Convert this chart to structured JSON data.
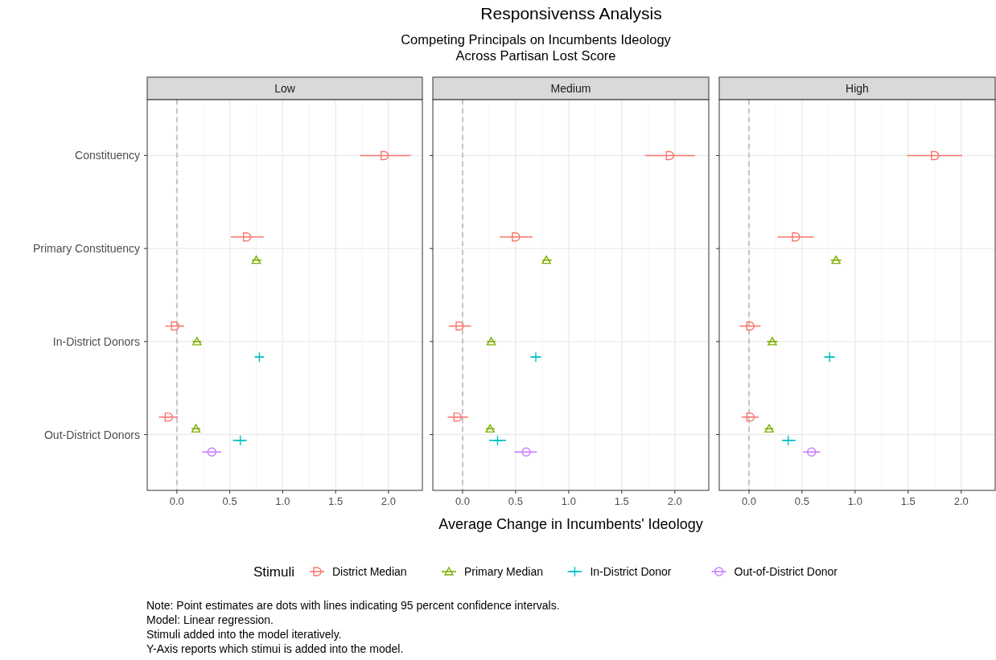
{
  "chart_data": [
    {
      "type": "scatter",
      "orientation": "horizontal",
      "title": "Low",
      "categories": [
        "Constituency",
        "Primary Constituency",
        "In-District Donors",
        "Out-District Donors"
      ],
      "series": [
        {
          "color": "#f8766d",
          "marker": "square",
          "values": [
            1.96,
            0.66,
            -0.02,
            -0.08
          ],
          "errors": [
            [
              1.73,
              2.21
            ],
            [
              0.51,
              0.82
            ],
            [
              -0.11,
              0.07
            ],
            [
              -0.17,
              0.01
            ]
          ]
        },
        {
          "color": "#7cae00",
          "marker": "triangle",
          "values": [
            null,
            0.75,
            0.19,
            0.18
          ],
          "errors": [
            null,
            [
              0.71,
              0.8
            ],
            [
              0.15,
              0.23
            ],
            [
              0.14,
              0.22
            ]
          ]
        },
        {
          "color": "#00bfc4",
          "marker": "cross",
          "values": [
            null,
            null,
            0.78,
            0.6
          ],
          "errors": [
            null,
            null,
            [
              0.74,
              0.82
            ],
            [
              0.53,
              0.66
            ]
          ]
        },
        {
          "color": "#c77cff",
          "marker": "circle",
          "values": [
            null,
            null,
            null,
            0.33
          ],
          "errors": [
            null,
            null,
            null,
            [
              0.24,
              0.42
            ]
          ]
        }
      ],
      "xlim": [
        -0.28,
        2.32
      ],
      "xticks": [
        {
          "value": 0,
          "label": "0.0"
        },
        {
          "value": 0.5,
          "label": "0.5"
        },
        {
          "value": 1,
          "label": "1.0"
        },
        {
          "value": 1.5,
          "label": "1.5"
        },
        {
          "value": 2,
          "label": "2.0"
        }
      ],
      "ref_lines": [
        {
          "axis": "x",
          "value": 0,
          "label": null,
          "color": "#bebebe",
          "line_style": "dashed"
        }
      ],
      "grid": true,
      "annotations": [
        "Responsivenss Analysis",
        "Competing Principals on Incumbents Ideology\nAcross Partisan Lost Score",
        "Note: Point estimates are dots with lines indicating 95 percent confidence intervals.\nModel: Linear regression.\nStimuli added into the model iteratively.\nY-Axis reports which stimui is added into the model."
      ]
    },
    {
      "type": "scatter",
      "orientation": "horizontal",
      "title": "Medium",
      "categories": [
        null,
        null,
        null,
        null
      ],
      "tick_labels": "x",
      "series": [
        {
          "name": "District Median",
          "color": "#f8766d",
          "marker": "square",
          "values": [
            1.95,
            0.5,
            -0.03,
            -0.05
          ],
          "errors": [
            [
              1.72,
              2.19
            ],
            [
              0.35,
              0.66
            ],
            [
              -0.13,
              0.08
            ],
            [
              -0.14,
              0.05
            ]
          ]
        },
        {
          "name": "Primary Median",
          "color": "#7cae00",
          "marker": "triangle",
          "values": [
            null,
            0.79,
            0.27,
            0.26
          ],
          "errors": [
            null,
            [
              0.75,
              0.84
            ],
            [
              0.23,
              0.31
            ],
            [
              0.22,
              0.3
            ]
          ]
        },
        {
          "name": "In-District Donor",
          "color": "#00bfc4",
          "marker": "cross",
          "values": [
            null,
            null,
            0.69,
            0.33
          ],
          "errors": [
            null,
            null,
            [
              0.64,
              0.74
            ],
            [
              0.25,
              0.41
            ]
          ]
        },
        {
          "name": "Out-of-District Donor",
          "color": "#c77cff",
          "marker": "circle",
          "values": [
            null,
            null,
            null,
            0.6
          ],
          "errors": [
            null,
            null,
            null,
            [
              0.49,
              0.7
            ]
          ]
        }
      ],
      "xlim": [
        -0.28,
        2.32
      ],
      "xticks": [
        {
          "value": 0,
          "label": "0.0"
        },
        {
          "value": 0.5,
          "label": "0.5"
        },
        {
          "value": 1,
          "label": "1.0"
        },
        {
          "value": 1.5,
          "label": "1.5"
        },
        {
          "value": 2,
          "label": "2.0"
        }
      ],
      "ref_lines": [
        {
          "axis": "x",
          "value": 0,
          "label": null,
          "color": "#bebebe",
          "line_style": "dashed"
        }
      ],
      "grid": true,
      "xlabel": "Average Change in Incumbents' Ideology",
      "legend": "bottom",
      "legend_title": "Stimuli"
    },
    {
      "type": "scatter",
      "orientation": "horizontal",
      "title": "High",
      "categories": [
        null,
        null,
        null,
        null
      ],
      "tick_labels": "x",
      "series": [
        {
          "color": "#f8766d",
          "marker": "square",
          "values": [
            1.75,
            0.44,
            0.01,
            0.01
          ],
          "errors": [
            [
              1.49,
              2.01
            ],
            [
              0.27,
              0.61
            ],
            [
              -0.09,
              0.11
            ],
            [
              -0.07,
              0.09
            ]
          ]
        },
        {
          "color": "#7cae00",
          "marker": "triangle",
          "values": [
            null,
            0.82,
            0.22,
            0.19
          ],
          "errors": [
            null,
            [
              0.77,
              0.87
            ],
            [
              0.17,
              0.27
            ],
            [
              0.15,
              0.23
            ]
          ]
        },
        {
          "color": "#00bfc4",
          "marker": "cross",
          "values": [
            null,
            null,
            0.76,
            0.37
          ],
          "errors": [
            null,
            null,
            [
              0.71,
              0.81
            ],
            [
              0.31,
              0.44
            ]
          ]
        },
        {
          "color": "#c77cff",
          "marker": "circle",
          "values": [
            null,
            null,
            null,
            0.59
          ],
          "errors": [
            null,
            null,
            null,
            [
              0.51,
              0.67
            ]
          ]
        }
      ],
      "xlim": [
        -0.28,
        2.32
      ],
      "xticks": [
        {
          "value": 0,
          "label": "0.0"
        },
        {
          "value": 0.5,
          "label": "0.5"
        },
        {
          "value": 1,
          "label": "1.0"
        },
        {
          "value": 1.5,
          "label": "1.5"
        },
        {
          "value": 2,
          "label": "2.0"
        }
      ],
      "ref_lines": [
        {
          "axis": "x",
          "value": 0,
          "label": null,
          "color": "#bebebe",
          "line_style": "dashed"
        }
      ],
      "grid": true
    }
  ]
}
